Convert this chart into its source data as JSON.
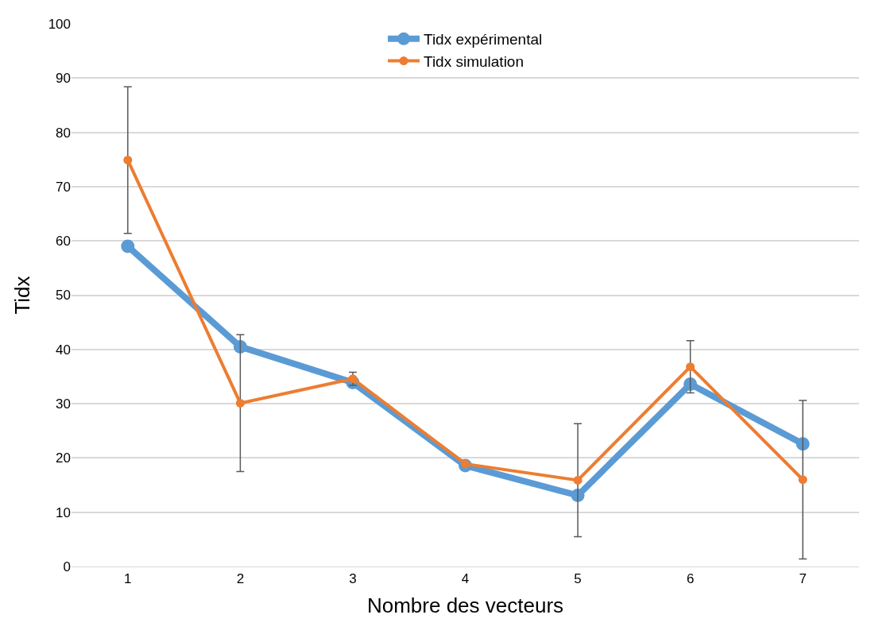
{
  "chart_data": {
    "type": "line",
    "xlabel": "Nombre des vecteurs",
    "ylabel": "Tidx",
    "categories": [
      "1",
      "2",
      "3",
      "4",
      "5",
      "6",
      "7"
    ],
    "series": [
      {
        "name": "Tidx expérimental",
        "color": "#5b9bd5",
        "values": [
          59,
          40.5,
          33.9,
          18.6,
          13.1,
          33.6,
          22.6
        ]
      },
      {
        "name": "Tidx simulation",
        "color": "#ed7d31",
        "values": [
          74.9,
          30.1,
          34.6,
          18.9,
          15.9,
          36.8,
          16.0
        ],
        "errors": [
          13.5,
          12.6,
          1.2,
          null,
          10.4,
          4.8,
          14.6
        ]
      }
    ],
    "ylim": [
      0,
      100
    ],
    "yticks": [
      0,
      10,
      20,
      30,
      40,
      50,
      60,
      70,
      80,
      90,
      100
    ],
    "grid": "y",
    "legend": "top",
    "marker": "circle",
    "line_style": "solid"
  }
}
